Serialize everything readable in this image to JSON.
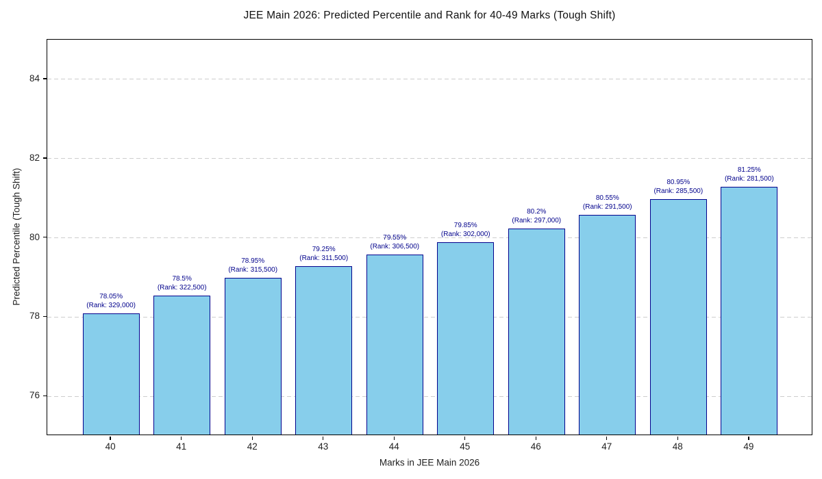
{
  "chart_data": {
    "type": "bar",
    "title": "JEE Main 2026: Predicted Percentile and Rank for 40-49 Marks (Tough Shift)",
    "xlabel": "Marks in JEE Main 2026",
    "ylabel": "Predicted Percentile (Tough Shift)",
    "categories": [
      40,
      41,
      42,
      43,
      44,
      45,
      46,
      47,
      48,
      49
    ],
    "values": [
      78.05,
      78.5,
      78.95,
      79.25,
      79.55,
      79.85,
      80.2,
      80.55,
      80.95,
      81.25
    ],
    "percent_labels": [
      "78.05%",
      "78.5%",
      "78.95%",
      "79.25%",
      "79.55%",
      "79.85%",
      "80.2%",
      "80.55%",
      "80.95%",
      "81.25%"
    ],
    "rank_labels": [
      "(Rank: 329,000)",
      "(Rank: 322,500)",
      "(Rank: 315,500)",
      "(Rank: 311,500)",
      "(Rank: 306,500)",
      "(Rank: 302,000)",
      "(Rank: 297,000)",
      "(Rank: 291,500)",
      "(Rank: 285,500)",
      "(Rank: 281,500)"
    ],
    "yticks": [
      76,
      78,
      80,
      82,
      84
    ],
    "ylim": [
      75,
      85
    ],
    "xlim": [
      39.1,
      49.9
    ],
    "bar_width_units": 0.8,
    "grid": {
      "axis": "y",
      "style": "dashed"
    },
    "legend": null,
    "colors": {
      "bar_fill": "#87CEEB",
      "bar_edge": "#00008B",
      "annotation": "#00008B",
      "gridline": "#cdcdcd",
      "spine": "#000000",
      "text": "#222222"
    }
  }
}
